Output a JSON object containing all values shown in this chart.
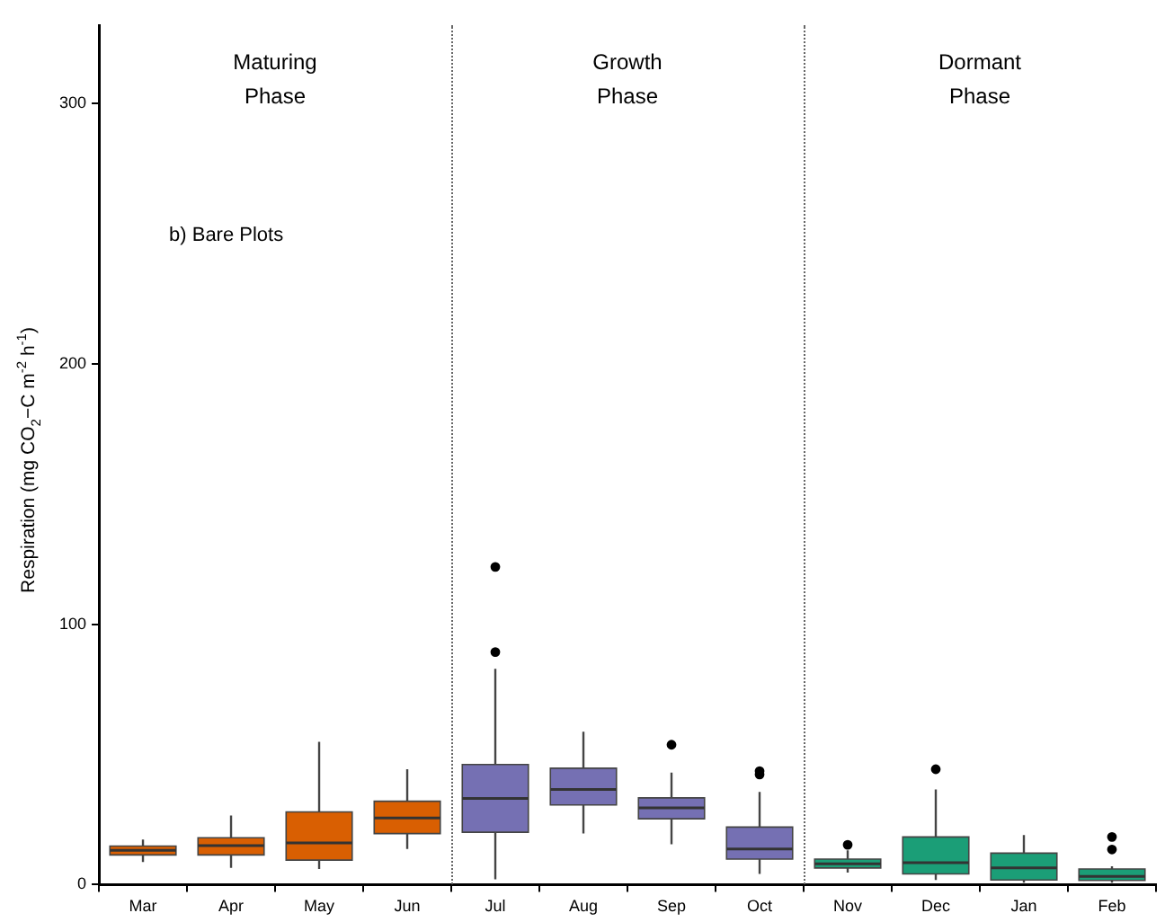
{
  "chart_data": {
    "type": "box",
    "ylabel": "Respiration (mg CO$_{2}$−C m$^{-2}$ h$^{-1}$)",
    "categories": [
      "Mar",
      "Apr",
      "May",
      "Jun",
      "Jul",
      "Aug",
      "Sep",
      "Oct",
      "Nov",
      "Dec",
      "Jan",
      "Feb"
    ],
    "colors": [
      "#d95f02",
      "#d95f02",
      "#d95f02",
      "#d95f02",
      "#7570b3",
      "#7570b3",
      "#7570b3",
      "#7570b3",
      "#1b9e77",
      "#1b9e77",
      "#1b9e77",
      "#1b9e77"
    ],
    "boxes": [
      {
        "low": 8.7,
        "q1": 11.4,
        "median": 13.2,
        "q3": 14.8,
        "high": 17.3
      },
      {
        "low": 6.4,
        "q1": 11.4,
        "median": 15,
        "q3": 18,
        "high": 26.5
      },
      {
        "low": 6,
        "q1": 9.4,
        "median": 16,
        "q3": 27.9,
        "high": 54.8
      },
      {
        "low": 13.7,
        "q1": 19.6,
        "median": 25.6,
        "q3": 32,
        "high": 44.3
      },
      {
        "low": 2,
        "q1": 20.1,
        "median": 33.1,
        "q3": 46.1,
        "high": 82.9,
        "outliers": [
          89.3,
          122
        ]
      },
      {
        "low": 19.6,
        "q1": 30.6,
        "median": 36.5,
        "q3": 44.7,
        "high": 58.7
      },
      {
        "low": 15.5,
        "q1": 25.3,
        "median": 29.5,
        "q3": 33.3,
        "high": 43,
        "outliers": [
          53.7
        ]
      },
      {
        "low": 4.1,
        "q1": 9.8,
        "median": 13.7,
        "q3": 22.1,
        "high": 35.6,
        "outliers": [
          42.3,
          43.6
        ]
      },
      {
        "low": 4.6,
        "q1": 6.4,
        "median": 8,
        "q3": 9.8,
        "high": 13.2,
        "outliers": [
          15.3
        ]
      },
      {
        "low": 1.8,
        "q1": 4.1,
        "median": 8.4,
        "q3": 18.3,
        "high": 36.5,
        "outliers": [
          44.3
        ]
      },
      {
        "low": 0.7,
        "q1": 1.8,
        "median": 6.4,
        "q3": 12.1,
        "high": 19
      },
      {
        "low": 0.7,
        "q1": 1.6,
        "median": 3.2,
        "q3": 6,
        "high": 7,
        "outliers": [
          13.5,
          18.3
        ]
      }
    ],
    "ylim": [
      0,
      330
    ],
    "yticks": [
      0,
      100,
      200,
      300
    ],
    "grid": false,
    "legend": false,
    "annotations": [
      "Maturing\nPhase",
      "Growth\nPhase",
      "Dormant\nPhase",
      "b) Bare Plots"
    ]
  }
}
